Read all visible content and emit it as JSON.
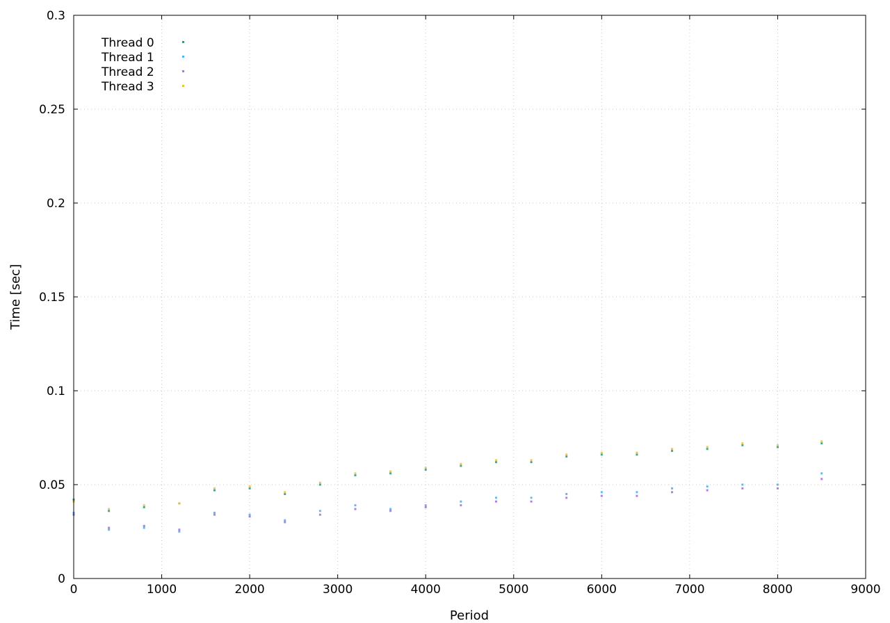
{
  "chart_data": {
    "type": "scatter",
    "title": "",
    "xlabel": "Period",
    "ylabel": "Time [sec]",
    "xlim": [
      0,
      9000
    ],
    "ylim": [
      0,
      0.3
    ],
    "xticks": [
      0,
      1000,
      2000,
      3000,
      4000,
      5000,
      6000,
      7000,
      8000,
      9000
    ],
    "yticks": [
      0,
      0.05,
      0.1,
      0.15,
      0.2,
      0.25,
      0.3
    ],
    "xtick_labels": [
      "0",
      "1000",
      "2000",
      "3000",
      "4000",
      "5000",
      "6000",
      "7000",
      "8000",
      "9000"
    ],
    "ytick_labels": [
      "0",
      "0.05",
      "0.1",
      "0.15",
      "0.2",
      "0.25",
      "0.3"
    ],
    "grid": true,
    "legend_position": "top-left",
    "series": [
      {
        "name": "Thread 0",
        "color": "#2a9e8e",
        "values": [
          [
            0,
            0.042
          ],
          [
            400,
            0.036
          ],
          [
            800,
            0.038
          ],
          [
            1200,
            0.04
          ],
          [
            1600,
            0.047
          ],
          [
            2000,
            0.048
          ],
          [
            2400,
            0.045
          ],
          [
            2800,
            0.05
          ],
          [
            3200,
            0.055
          ],
          [
            3600,
            0.056
          ],
          [
            4000,
            0.058
          ],
          [
            4400,
            0.06
          ],
          [
            4800,
            0.062
          ],
          [
            5200,
            0.062
          ],
          [
            5600,
            0.065
          ],
          [
            6000,
            0.066
          ],
          [
            6400,
            0.066
          ],
          [
            6800,
            0.068
          ],
          [
            7200,
            0.069
          ],
          [
            7600,
            0.071
          ],
          [
            8000,
            0.07
          ],
          [
            8500,
            0.072
          ]
        ]
      },
      {
        "name": "Thread 1",
        "color": "#56b4e9",
        "values": [
          [
            0,
            0.035
          ],
          [
            400,
            0.026
          ],
          [
            800,
            0.027
          ],
          [
            1200,
            0.025
          ],
          [
            1600,
            0.035
          ],
          [
            2000,
            0.034
          ],
          [
            2400,
            0.031
          ],
          [
            2800,
            0.036
          ],
          [
            3200,
            0.039
          ],
          [
            3600,
            0.037
          ],
          [
            4000,
            0.039
          ],
          [
            4400,
            0.041
          ],
          [
            4800,
            0.043
          ],
          [
            5200,
            0.043
          ],
          [
            5600,
            0.045
          ],
          [
            6000,
            0.046
          ],
          [
            6400,
            0.046
          ],
          [
            6800,
            0.048
          ],
          [
            7200,
            0.049
          ],
          [
            7600,
            0.05
          ],
          [
            8000,
            0.05
          ],
          [
            8500,
            0.056
          ]
        ]
      },
      {
        "name": "Thread 2",
        "color": "#a676d8",
        "values": [
          [
            0,
            0.034
          ],
          [
            400,
            0.027
          ],
          [
            800,
            0.028
          ],
          [
            1200,
            0.026
          ],
          [
            1600,
            0.034
          ],
          [
            2000,
            0.033
          ],
          [
            2400,
            0.03
          ],
          [
            2800,
            0.034
          ],
          [
            3200,
            0.037
          ],
          [
            3600,
            0.036
          ],
          [
            4000,
            0.038
          ],
          [
            4400,
            0.039
          ],
          [
            4800,
            0.041
          ],
          [
            5200,
            0.041
          ],
          [
            5600,
            0.043
          ],
          [
            6000,
            0.044
          ],
          [
            6400,
            0.044
          ],
          [
            6800,
            0.046
          ],
          [
            7200,
            0.047
          ],
          [
            7600,
            0.048
          ],
          [
            8000,
            0.048
          ],
          [
            8500,
            0.053
          ]
        ]
      },
      {
        "name": "Thread 3",
        "color": "#e6c34a",
        "values": [
          [
            0,
            0.041
          ],
          [
            400,
            0.037
          ],
          [
            800,
            0.039
          ],
          [
            1200,
            0.04
          ],
          [
            1600,
            0.048
          ],
          [
            2000,
            0.049
          ],
          [
            2400,
            0.046
          ],
          [
            2800,
            0.051
          ],
          [
            3200,
            0.056
          ],
          [
            3600,
            0.057
          ],
          [
            4000,
            0.059
          ],
          [
            4400,
            0.061
          ],
          [
            4800,
            0.063
          ],
          [
            5200,
            0.063
          ],
          [
            5600,
            0.066
          ],
          [
            6000,
            0.067
          ],
          [
            6400,
            0.067
          ],
          [
            6800,
            0.069
          ],
          [
            7200,
            0.07
          ],
          [
            7600,
            0.072
          ],
          [
            8000,
            0.071
          ],
          [
            8500,
            0.073
          ]
        ]
      }
    ]
  }
}
